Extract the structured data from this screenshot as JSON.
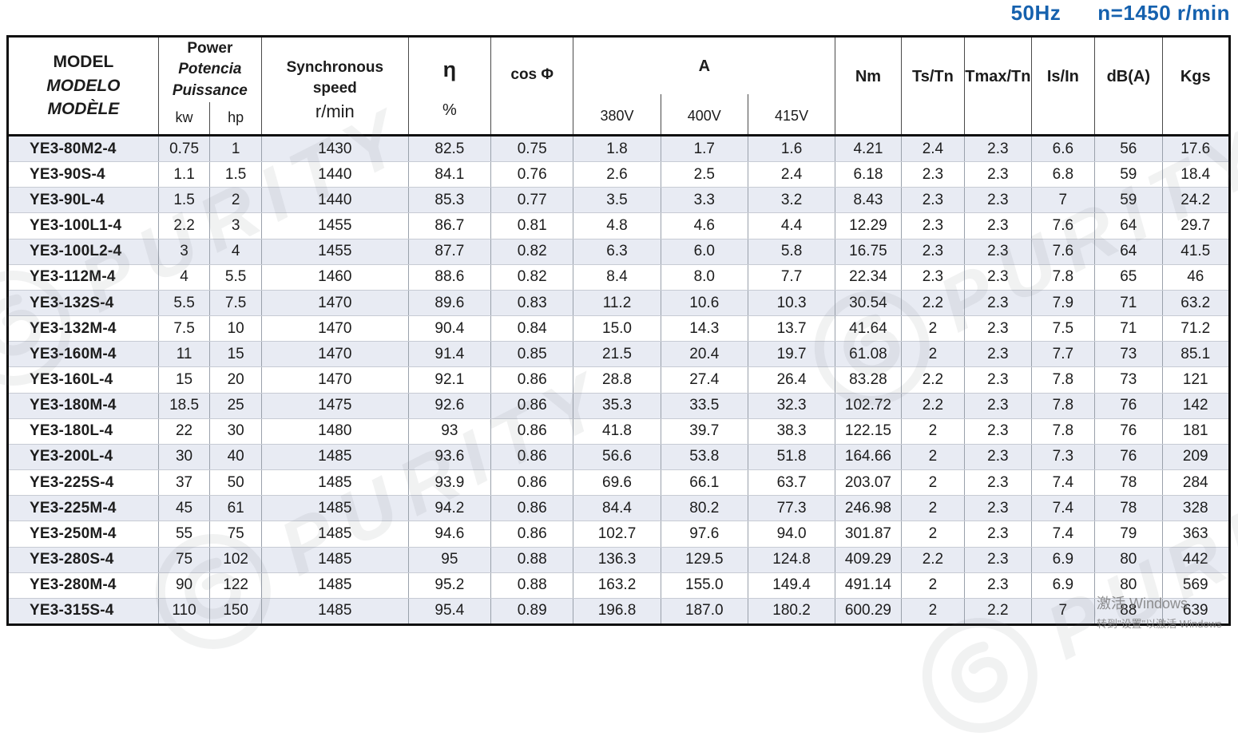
{
  "caption": {
    "frequency": "50Hz",
    "speed": "n=1450 r/min"
  },
  "table": {
    "header": {
      "model_lines": [
        "MODEL",
        "MODELO",
        "MODÈLE"
      ],
      "power_lines": [
        "Power",
        "Potencia",
        "Puissance"
      ],
      "power_sub": [
        "kw",
        "hp"
      ],
      "sync_lines": [
        "Synchronous",
        "speed"
      ],
      "sync_unit": "r/min",
      "eta_symbol": "η",
      "eta_unit": "%",
      "cos_phi": "cos Φ",
      "current_label": "A",
      "current_sub": [
        "380V",
        "400V",
        "415V"
      ],
      "nm": "Nm",
      "ts_tn": "Ts/Tn",
      "tmax_tn": "Tmax/Tn",
      "is_in": "Is/In",
      "db": "dB(A)",
      "kgs": "Kgs"
    },
    "rows": [
      [
        "YE3-80M2-4",
        "0.75",
        "1",
        "1430",
        "82.5",
        "0.75",
        "1.8",
        "1.7",
        "1.6",
        "4.21",
        "2.4",
        "2.3",
        "6.6",
        "56",
        "17.6"
      ],
      [
        "YE3-90S-4",
        "1.1",
        "1.5",
        "1440",
        "84.1",
        "0.76",
        "2.6",
        "2.5",
        "2.4",
        "6.18",
        "2.3",
        "2.3",
        "6.8",
        "59",
        "18.4"
      ],
      [
        "YE3-90L-4",
        "1.5",
        "2",
        "1440",
        "85.3",
        "0.77",
        "3.5",
        "3.3",
        "3.2",
        "8.43",
        "2.3",
        "2.3",
        "7",
        "59",
        "24.2"
      ],
      [
        "YE3-100L1-4",
        "2.2",
        "3",
        "1455",
        "86.7",
        "0.81",
        "4.8",
        "4.6",
        "4.4",
        "12.29",
        "2.3",
        "2.3",
        "7.6",
        "64",
        "29.7"
      ],
      [
        "YE3-100L2-4",
        "3",
        "4",
        "1455",
        "87.7",
        "0.82",
        "6.3",
        "6.0",
        "5.8",
        "16.75",
        "2.3",
        "2.3",
        "7.6",
        "64",
        "41.5"
      ],
      [
        "YE3-112M-4",
        "4",
        "5.5",
        "1460",
        "88.6",
        "0.82",
        "8.4",
        "8.0",
        "7.7",
        "22.34",
        "2.3",
        "2.3",
        "7.8",
        "65",
        "46"
      ],
      [
        "YE3-132S-4",
        "5.5",
        "7.5",
        "1470",
        "89.6",
        "0.83",
        "11.2",
        "10.6",
        "10.3",
        "30.54",
        "2.2",
        "2.3",
        "7.9",
        "71",
        "63.2"
      ],
      [
        "YE3-132M-4",
        "7.5",
        "10",
        "1470",
        "90.4",
        "0.84",
        "15.0",
        "14.3",
        "13.7",
        "41.64",
        "2",
        "2.3",
        "7.5",
        "71",
        "71.2"
      ],
      [
        "YE3-160M-4",
        "11",
        "15",
        "1470",
        "91.4",
        "0.85",
        "21.5",
        "20.4",
        "19.7",
        "61.08",
        "2",
        "2.3",
        "7.7",
        "73",
        "85.1"
      ],
      [
        "YE3-160L-4",
        "15",
        "20",
        "1470",
        "92.1",
        "0.86",
        "28.8",
        "27.4",
        "26.4",
        "83.28",
        "2.2",
        "2.3",
        "7.8",
        "73",
        "121"
      ],
      [
        "YE3-180M-4",
        "18.5",
        "25",
        "1475",
        "92.6",
        "0.86",
        "35.3",
        "33.5",
        "32.3",
        "102.72",
        "2.2",
        "2.3",
        "7.8",
        "76",
        "142"
      ],
      [
        "YE3-180L-4",
        "22",
        "30",
        "1480",
        "93",
        "0.86",
        "41.8",
        "39.7",
        "38.3",
        "122.15",
        "2",
        "2.3",
        "7.8",
        "76",
        "181"
      ],
      [
        "YE3-200L-4",
        "30",
        "40",
        "1485",
        "93.6",
        "0.86",
        "56.6",
        "53.8",
        "51.8",
        "164.66",
        "2",
        "2.3",
        "7.3",
        "76",
        "209"
      ],
      [
        "YE3-225S-4",
        "37",
        "50",
        "1485",
        "93.9",
        "0.86",
        "69.6",
        "66.1",
        "63.7",
        "203.07",
        "2",
        "2.3",
        "7.4",
        "78",
        "284"
      ],
      [
        "YE3-225M-4",
        "45",
        "61",
        "1485",
        "94.2",
        "0.86",
        "84.4",
        "80.2",
        "77.3",
        "246.98",
        "2",
        "2.3",
        "7.4",
        "78",
        "328"
      ],
      [
        "YE3-250M-4",
        "55",
        "75",
        "1485",
        "94.6",
        "0.86",
        "102.7",
        "97.6",
        "94.0",
        "301.87",
        "2",
        "2.3",
        "7.4",
        "79",
        "363"
      ],
      [
        "YE3-280S-4",
        "75",
        "102",
        "1485",
        "95",
        "0.88",
        "136.3",
        "129.5",
        "124.8",
        "409.29",
        "2.2",
        "2.3",
        "6.9",
        "80",
        "442"
      ],
      [
        "YE3-280M-4",
        "90",
        "122",
        "1485",
        "95.2",
        "0.88",
        "163.2",
        "155.0",
        "149.4",
        "491.14",
        "2",
        "2.3",
        "6.9",
        "80",
        "569"
      ],
      [
        "YE3-315S-4",
        "110",
        "150",
        "1485",
        "95.4",
        "0.89",
        "196.8",
        "187.0",
        "180.2",
        "600.29",
        "2",
        "2.2",
        "7",
        "88",
        "639"
      ]
    ]
  },
  "watermark": {
    "text": "PURITY"
  },
  "activation": {
    "line1": "激活 Windows",
    "line2": "转到\"设置\"以激活 Windows"
  },
  "colors": {
    "caption_blue": "#1561ae",
    "alt_row": "#e8ebf3",
    "border_dark": "#101010"
  }
}
